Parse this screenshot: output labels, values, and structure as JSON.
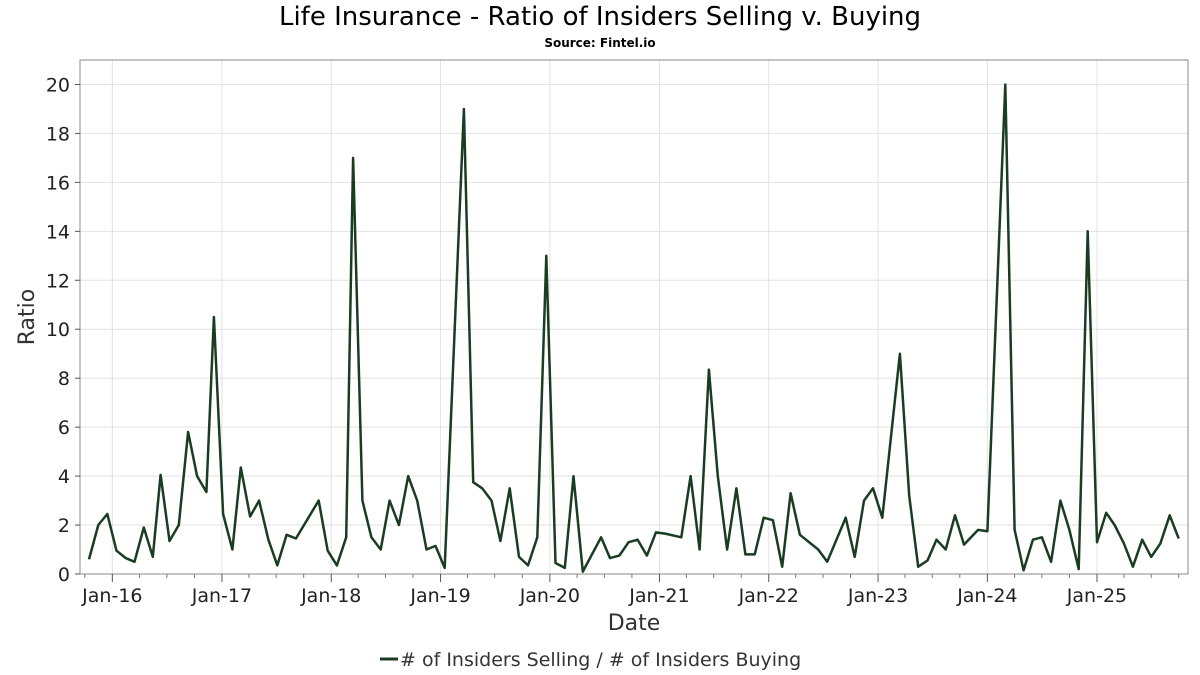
{
  "chart_data": {
    "type": "line",
    "title": "Life Insurance - Ratio of Insiders Selling v. Buying",
    "subtitle": "Source: Fintel.io",
    "xlabel": "Date",
    "ylabel": "Ratio",
    "xlim": [
      "2015-09-15",
      "2025-11-01"
    ],
    "ylim": [
      0,
      21
    ],
    "yticks": [
      0,
      2,
      4,
      6,
      8,
      10,
      12,
      14,
      16,
      18,
      20
    ],
    "xticks": [
      {
        "label": "Jan-16",
        "date": "2016-01-01"
      },
      {
        "label": "Jan-17",
        "date": "2017-01-01"
      },
      {
        "label": "Jan-18",
        "date": "2018-01-01"
      },
      {
        "label": "Jan-19",
        "date": "2019-01-01"
      },
      {
        "label": "Jan-20",
        "date": "2020-01-01"
      },
      {
        "label": "Jan-21",
        "date": "2021-01-01"
      },
      {
        "label": "Jan-22",
        "date": "2022-01-01"
      },
      {
        "label": "Jan-23",
        "date": "2023-01-01"
      },
      {
        "label": "Jan-24",
        "date": "2024-01-01"
      },
      {
        "label": "Jan-25",
        "date": "2025-01-01"
      }
    ],
    "grid": true,
    "legend_position": "bottom-center",
    "series": [
      {
        "name": "# of Insiders Selling / # of Insiders Buying",
        "color": "#1a3d22",
        "points": [
          [
            "2015-10-15",
            0.6
          ],
          [
            "2015-11-15",
            2.0
          ],
          [
            "2015-12-15",
            2.45
          ],
          [
            "2016-01-15",
            0.95
          ],
          [
            "2016-02-15",
            0.65
          ],
          [
            "2016-03-15",
            0.5
          ],
          [
            "2016-04-15",
            1.9
          ],
          [
            "2016-05-15",
            0.7
          ],
          [
            "2016-06-10",
            4.05
          ],
          [
            "2016-07-10",
            1.35
          ],
          [
            "2016-08-10",
            2.0
          ],
          [
            "2016-09-10",
            5.8
          ],
          [
            "2016-10-10",
            4.0
          ],
          [
            "2016-11-10",
            3.35
          ],
          [
            "2016-12-05",
            10.5
          ],
          [
            "2017-01-05",
            2.45
          ],
          [
            "2017-02-05",
            1.0
          ],
          [
            "2017-03-05",
            4.35
          ],
          [
            "2017-04-05",
            2.35
          ],
          [
            "2017-05-05",
            3.0
          ],
          [
            "2017-06-05",
            1.4
          ],
          [
            "2017-07-05",
            0.35
          ],
          [
            "2017-08-05",
            1.6
          ],
          [
            "2017-09-05",
            1.45
          ],
          [
            "2017-11-20",
            3.0
          ],
          [
            "2017-12-20",
            0.95
          ],
          [
            "2018-01-20",
            0.35
          ],
          [
            "2018-02-20",
            1.5
          ],
          [
            "2018-03-15",
            17.0
          ],
          [
            "2018-04-15",
            3.0
          ],
          [
            "2018-05-15",
            1.5
          ],
          [
            "2018-06-15",
            1.0
          ],
          [
            "2018-07-15",
            3.0
          ],
          [
            "2018-08-15",
            2.0
          ],
          [
            "2018-09-15",
            4.0
          ],
          [
            "2018-10-15",
            3.0
          ],
          [
            "2018-11-15",
            1.0
          ],
          [
            "2018-12-15",
            1.15
          ],
          [
            "2019-01-15",
            0.25
          ],
          [
            "2019-03-20",
            19.0
          ],
          [
            "2019-04-20",
            3.75
          ],
          [
            "2019-05-20",
            3.5
          ],
          [
            "2019-06-20",
            3.0
          ],
          [
            "2019-07-20",
            1.35
          ],
          [
            "2019-08-20",
            3.5
          ],
          [
            "2019-09-20",
            0.7
          ],
          [
            "2019-10-20",
            0.35
          ],
          [
            "2019-11-20",
            1.5
          ],
          [
            "2019-12-20",
            13.0
          ],
          [
            "2020-01-20",
            0.45
          ],
          [
            "2020-02-20",
            0.25
          ],
          [
            "2020-03-20",
            4.0
          ],
          [
            "2020-04-20",
            0.1
          ],
          [
            "2020-06-20",
            1.5
          ],
          [
            "2020-07-20",
            0.65
          ],
          [
            "2020-08-20",
            0.75
          ],
          [
            "2020-09-20",
            1.3
          ],
          [
            "2020-10-20",
            1.4
          ],
          [
            "2020-11-20",
            0.75
          ],
          [
            "2020-12-20",
            1.7
          ],
          [
            "2021-01-20",
            1.65
          ],
          [
            "2021-03-15",
            1.5
          ],
          [
            "2021-04-15",
            4.0
          ],
          [
            "2021-05-15",
            1.0
          ],
          [
            "2021-06-15",
            8.35
          ],
          [
            "2021-07-15",
            4.0
          ],
          [
            "2021-08-15",
            1.0
          ],
          [
            "2021-09-15",
            3.5
          ],
          [
            "2021-10-15",
            0.8
          ],
          [
            "2021-11-15",
            0.8
          ],
          [
            "2021-12-15",
            2.3
          ],
          [
            "2022-01-15",
            2.2
          ],
          [
            "2022-02-15",
            0.3
          ],
          [
            "2022-03-15",
            3.3
          ],
          [
            "2022-04-15",
            1.6
          ],
          [
            "2022-06-15",
            1.0
          ],
          [
            "2022-07-15",
            0.5
          ],
          [
            "2022-09-15",
            2.3
          ],
          [
            "2022-10-15",
            0.7
          ],
          [
            "2022-11-15",
            3.0
          ],
          [
            "2022-12-15",
            3.5
          ],
          [
            "2023-01-15",
            2.3
          ],
          [
            "2023-03-15",
            9.0
          ],
          [
            "2023-04-15",
            3.2
          ],
          [
            "2023-05-15",
            0.3
          ],
          [
            "2023-06-15",
            0.55
          ],
          [
            "2023-07-15",
            1.4
          ],
          [
            "2023-08-15",
            1.0
          ],
          [
            "2023-09-15",
            2.4
          ],
          [
            "2023-10-15",
            1.2
          ],
          [
            "2023-12-01",
            1.8
          ],
          [
            "2024-01-01",
            1.75
          ],
          [
            "2024-03-01",
            20.0
          ],
          [
            "2024-04-01",
            1.8
          ],
          [
            "2024-05-01",
            0.15
          ],
          [
            "2024-06-01",
            1.4
          ],
          [
            "2024-07-01",
            1.5
          ],
          [
            "2024-08-01",
            0.5
          ],
          [
            "2024-09-01",
            3.0
          ],
          [
            "2024-10-01",
            1.8
          ],
          [
            "2024-11-01",
            0.2
          ],
          [
            "2024-12-01",
            14.0
          ],
          [
            "2025-01-01",
            1.3
          ],
          [
            "2025-02-01",
            2.5
          ],
          [
            "2025-03-01",
            2.0
          ],
          [
            "2025-04-01",
            1.25
          ],
          [
            "2025-05-01",
            0.3
          ],
          [
            "2025-06-01",
            1.4
          ],
          [
            "2025-07-01",
            0.7
          ],
          [
            "2025-08-01",
            1.25
          ],
          [
            "2025-09-01",
            2.4
          ],
          [
            "2025-10-01",
            1.45
          ]
        ]
      }
    ]
  }
}
